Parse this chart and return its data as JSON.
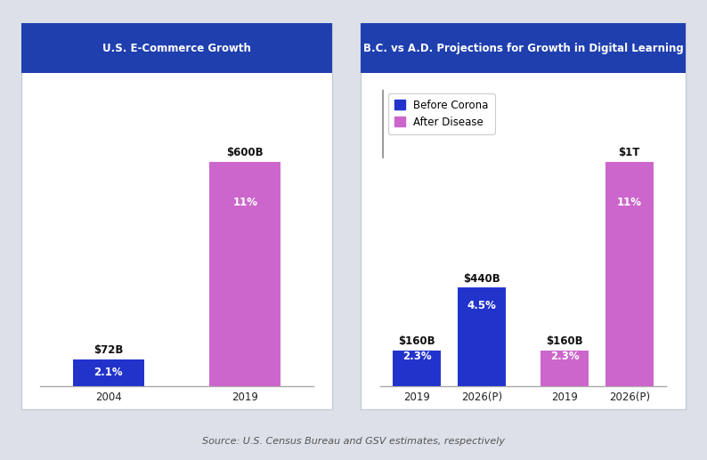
{
  "left_title": "U.S. E-Commerce Growth",
  "right_title": "B.C. vs A.D. Projections for Growth in Digital Learning",
  "title_bg_color": "#1f3faf",
  "title_text_color": "#ffffff",
  "blue_color": "#2233cc",
  "pink_color": "#cc66cc",
  "left_bars": {
    "categories": [
      "2004",
      "2019"
    ],
    "values": [
      72,
      600
    ],
    "colors": [
      "#2233cc",
      "#cc66cc"
    ],
    "labels": [
      "$72B",
      "$600B"
    ],
    "pct_labels": [
      "2.1%",
      "11%"
    ]
  },
  "right_bars": {
    "categories": [
      "2019",
      "2026(P)",
      "2019",
      "2026(P)"
    ],
    "values": [
      160,
      440,
      160,
      1000
    ],
    "colors": [
      "#2233cc",
      "#2233cc",
      "#cc66cc",
      "#cc66cc"
    ],
    "labels": [
      "$160B",
      "$440B",
      "$160B",
      "$1T"
    ],
    "pct_labels": [
      "2.3%",
      "4.5%",
      "2.3%",
      "11%"
    ]
  },
  "legend_labels": [
    "Before Corona",
    "After Disease"
  ],
  "source_text": "Source: U.S. Census Bureau and GSV estimates, respectively",
  "outer_bg": "#dde0e8",
  "panel_bg": "#ffffff",
  "panel_border": "#c8ccd8"
}
